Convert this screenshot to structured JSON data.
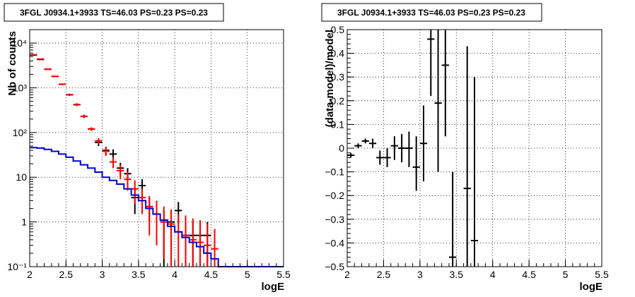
{
  "chart_data": [
    {
      "type": "scatter",
      "title": "3FGL J0934.1+3933 TS=46.03 PS=0.23 PS=0.23",
      "xlabel": "logE",
      "ylabel": "Nb of counts",
      "xlim": [
        2,
        5.5
      ],
      "ylim": [
        0.1,
        20000
      ],
      "yscale": "log",
      "grid": true,
      "x_ticks": [
        2,
        2.5,
        3,
        3.5,
        4,
        4.5,
        5,
        5.5
      ],
      "x_tick_labels": [
        "2",
        "2.5",
        "3",
        "3.5",
        "4",
        "4.5",
        "5",
        "5.5"
      ],
      "y_ticks": [
        0.1,
        1,
        10,
        100,
        1000,
        10000
      ],
      "y_tick_labels": [
        "10⁻¹",
        "1",
        "10",
        "10²",
        "10³",
        "10⁴"
      ],
      "colors": {
        "data": "#000000",
        "model": "#ff0000",
        "background": "#0000cc"
      },
      "series": [
        {
          "kind": "data",
          "color": "#000000",
          "x": [
            2.05,
            2.15,
            2.25,
            2.35,
            2.45,
            2.55,
            2.65,
            2.75,
            2.85,
            2.95,
            3.05,
            3.15,
            3.25,
            3.35,
            3.45,
            3.55,
            3.65,
            3.75,
            3.85,
            3.95,
            4.05,
            4.15,
            4.25,
            4.35,
            4.45
          ],
          "y": [
            5400,
            4300,
            2600,
            1800,
            1200,
            700,
            420,
            230,
            120,
            60,
            40,
            33,
            16,
            12,
            3.5,
            6.5,
            2.2,
            1.5,
            1,
            1,
            1.8,
            0.5,
            0.5,
            0.5,
            0.5
          ],
          "ylow": [
            5300,
            4200,
            2550,
            1750,
            1150,
            660,
            390,
            210,
            110,
            50,
            32,
            25,
            11,
            8,
            1.5,
            3.5,
            1,
            0.5,
            0.1,
            0.25,
            0.9,
            0.1,
            0.1,
            0.1,
            0.1
          ],
          "yhigh": [
            5500,
            4400,
            2650,
            1850,
            1250,
            740,
            450,
            250,
            130,
            70,
            48,
            42,
            21,
            16,
            5.5,
            9,
            3.5,
            2.5,
            1.8,
            1.8,
            2.8,
            1,
            1,
            1,
            1
          ]
        },
        {
          "kind": "model",
          "color": "#ff0000",
          "x": [
            2.05,
            2.15,
            2.25,
            2.35,
            2.45,
            2.55,
            2.65,
            2.75,
            2.85,
            2.95,
            3.05,
            3.15,
            3.25,
            3.35,
            3.45,
            3.55,
            3.65,
            3.75,
            3.85,
            3.95,
            4.05,
            4.15,
            4.25,
            4.35,
            4.45,
            4.55
          ],
          "y": [
            5500,
            4400,
            2600,
            1800,
            1200,
            700,
            420,
            230,
            120,
            65,
            38,
            22,
            14,
            9,
            5.5,
            3.5,
            2.2,
            1.5,
            1,
            0.9,
            0.6,
            0.5,
            0.4,
            0.35,
            0.3,
            0.25
          ],
          "ylow": [
            5400,
            4300,
            2550,
            1750,
            1150,
            670,
            400,
            215,
            110,
            55,
            30,
            16,
            9,
            5,
            2.5,
            1.5,
            0.5,
            0.3,
            0.15,
            0.1,
            0.1,
            0.1,
            0.1,
            0.1,
            0.1,
            0.1
          ],
          "yhigh": [
            5600,
            4500,
            2650,
            1850,
            1250,
            730,
            440,
            245,
            130,
            75,
            46,
            28,
            19,
            13,
            8.5,
            5.5,
            3.8,
            3,
            2.2,
            1.9,
            1.5,
            1.4,
            1.2,
            1.1,
            0.9,
            0.7
          ]
        },
        {
          "kind": "background",
          "color": "#0000cc",
          "step_edges": [
            2.0,
            2.1,
            2.2,
            2.3,
            2.4,
            2.5,
            2.6,
            2.7,
            2.8,
            2.9,
            3.0,
            3.1,
            3.2,
            3.3,
            3.4,
            3.5,
            3.6,
            3.7,
            3.8,
            3.9,
            4.0,
            4.1,
            4.2,
            4.3,
            4.4,
            4.5,
            4.6,
            5.5
          ],
          "values": [
            46,
            45,
            42,
            38,
            33,
            28,
            23,
            19,
            16,
            13,
            10,
            8.5,
            7,
            5.5,
            4,
            3,
            2,
            1.5,
            1.1,
            0.8,
            0.6,
            0.45,
            0.35,
            0.28,
            0.2,
            0.15,
            0.1
          ]
        }
      ]
    },
    {
      "type": "scatter",
      "title": "3FGL J0934.1+3933 TS=46.03 PS=0.23 PS=0.23",
      "xlabel": "logE",
      "ylabel": "(data-model)/model",
      "xlim": [
        2,
        5.5
      ],
      "ylim": [
        -0.5,
        0.5
      ],
      "grid": true,
      "x_ticks": [
        2,
        2.5,
        3,
        3.5,
        4,
        4.5,
        5,
        5.5
      ],
      "x_tick_labels": [
        "2",
        "2.5",
        "3",
        "3.5",
        "4",
        "4.5",
        "5",
        "5.5"
      ],
      "y_ticks": [
        -0.5,
        -0.4,
        -0.3,
        -0.2,
        -0.1,
        0,
        0.1,
        0.2,
        0.3,
        0.4,
        0.5
      ],
      "y_tick_labels": [
        "−0.5",
        "−0.4",
        "−0.3",
        "−0.2",
        "−0.1",
        "0",
        "0.1",
        "0.2",
        "0.3",
        "0.4",
        "0.5"
      ],
      "colors": {
        "data": "#000000"
      },
      "series": [
        {
          "kind": "residual",
          "color": "#000000",
          "x": [
            2.05,
            2.15,
            2.25,
            2.35,
            2.45,
            2.55,
            2.65,
            2.75,
            2.85,
            2.95,
            3.05,
            3.15,
            3.25,
            3.35,
            3.45,
            3.65,
            3.75
          ],
          "y": [
            -0.03,
            0.01,
            0.03,
            0.02,
            -0.04,
            -0.04,
            0.01,
            0.0,
            0.0,
            -0.08,
            0.02,
            0.46,
            0.19,
            0.35,
            -0.46,
            -0.17,
            -0.39
          ],
          "ylow": [
            -0.04,
            0.0,
            0.02,
            0.0,
            -0.07,
            -0.08,
            -0.05,
            -0.06,
            -0.08,
            -0.18,
            -0.14,
            0.22,
            -0.1,
            0.05,
            -0.5,
            -0.5,
            -0.5
          ],
          "yhigh": [
            -0.02,
            0.02,
            0.04,
            0.04,
            -0.01,
            0.0,
            0.05,
            0.06,
            0.07,
            0.05,
            0.18,
            0.5,
            0.5,
            0.5,
            -0.1,
            0.43,
            0.3
          ]
        }
      ]
    }
  ]
}
